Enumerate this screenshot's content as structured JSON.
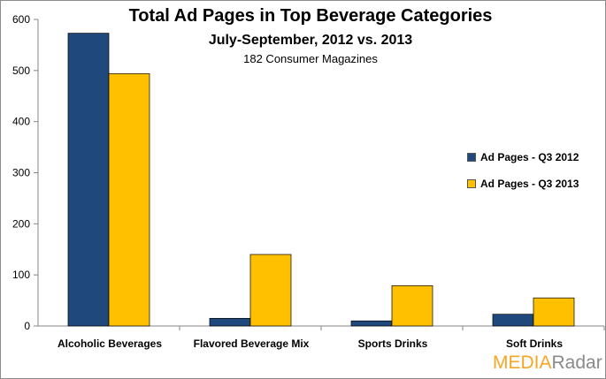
{
  "chart_data": {
    "type": "bar",
    "title": "Total Ad Pages in Top Beverage Categories",
    "subtitle": "July-September, 2012 vs. 2013",
    "subtitle2": "182 Consumer Magazines",
    "categories": [
      "Alcoholic Beverages",
      "Flavored Beverage Mix",
      "Sports Drinks",
      "Soft Drinks"
    ],
    "series": [
      {
        "name": "Ad Pages - Q3 2012",
        "color": "#1f497d",
        "values": [
          573,
          15,
          10,
          23
        ]
      },
      {
        "name": "Ad Pages - Q3 2013",
        "color": "#ffc000",
        "values": [
          494,
          140,
          79,
          55
        ]
      }
    ],
    "ylim": [
      0,
      600
    ],
    "yticks": [
      "0",
      "100",
      "200",
      "300",
      "400",
      "500",
      "600"
    ],
    "xlabel": "",
    "ylabel": "",
    "grid": false,
    "legend_position": "right"
  },
  "branding": {
    "logo_part1": "MEDIA",
    "logo_part2": "Radar"
  }
}
